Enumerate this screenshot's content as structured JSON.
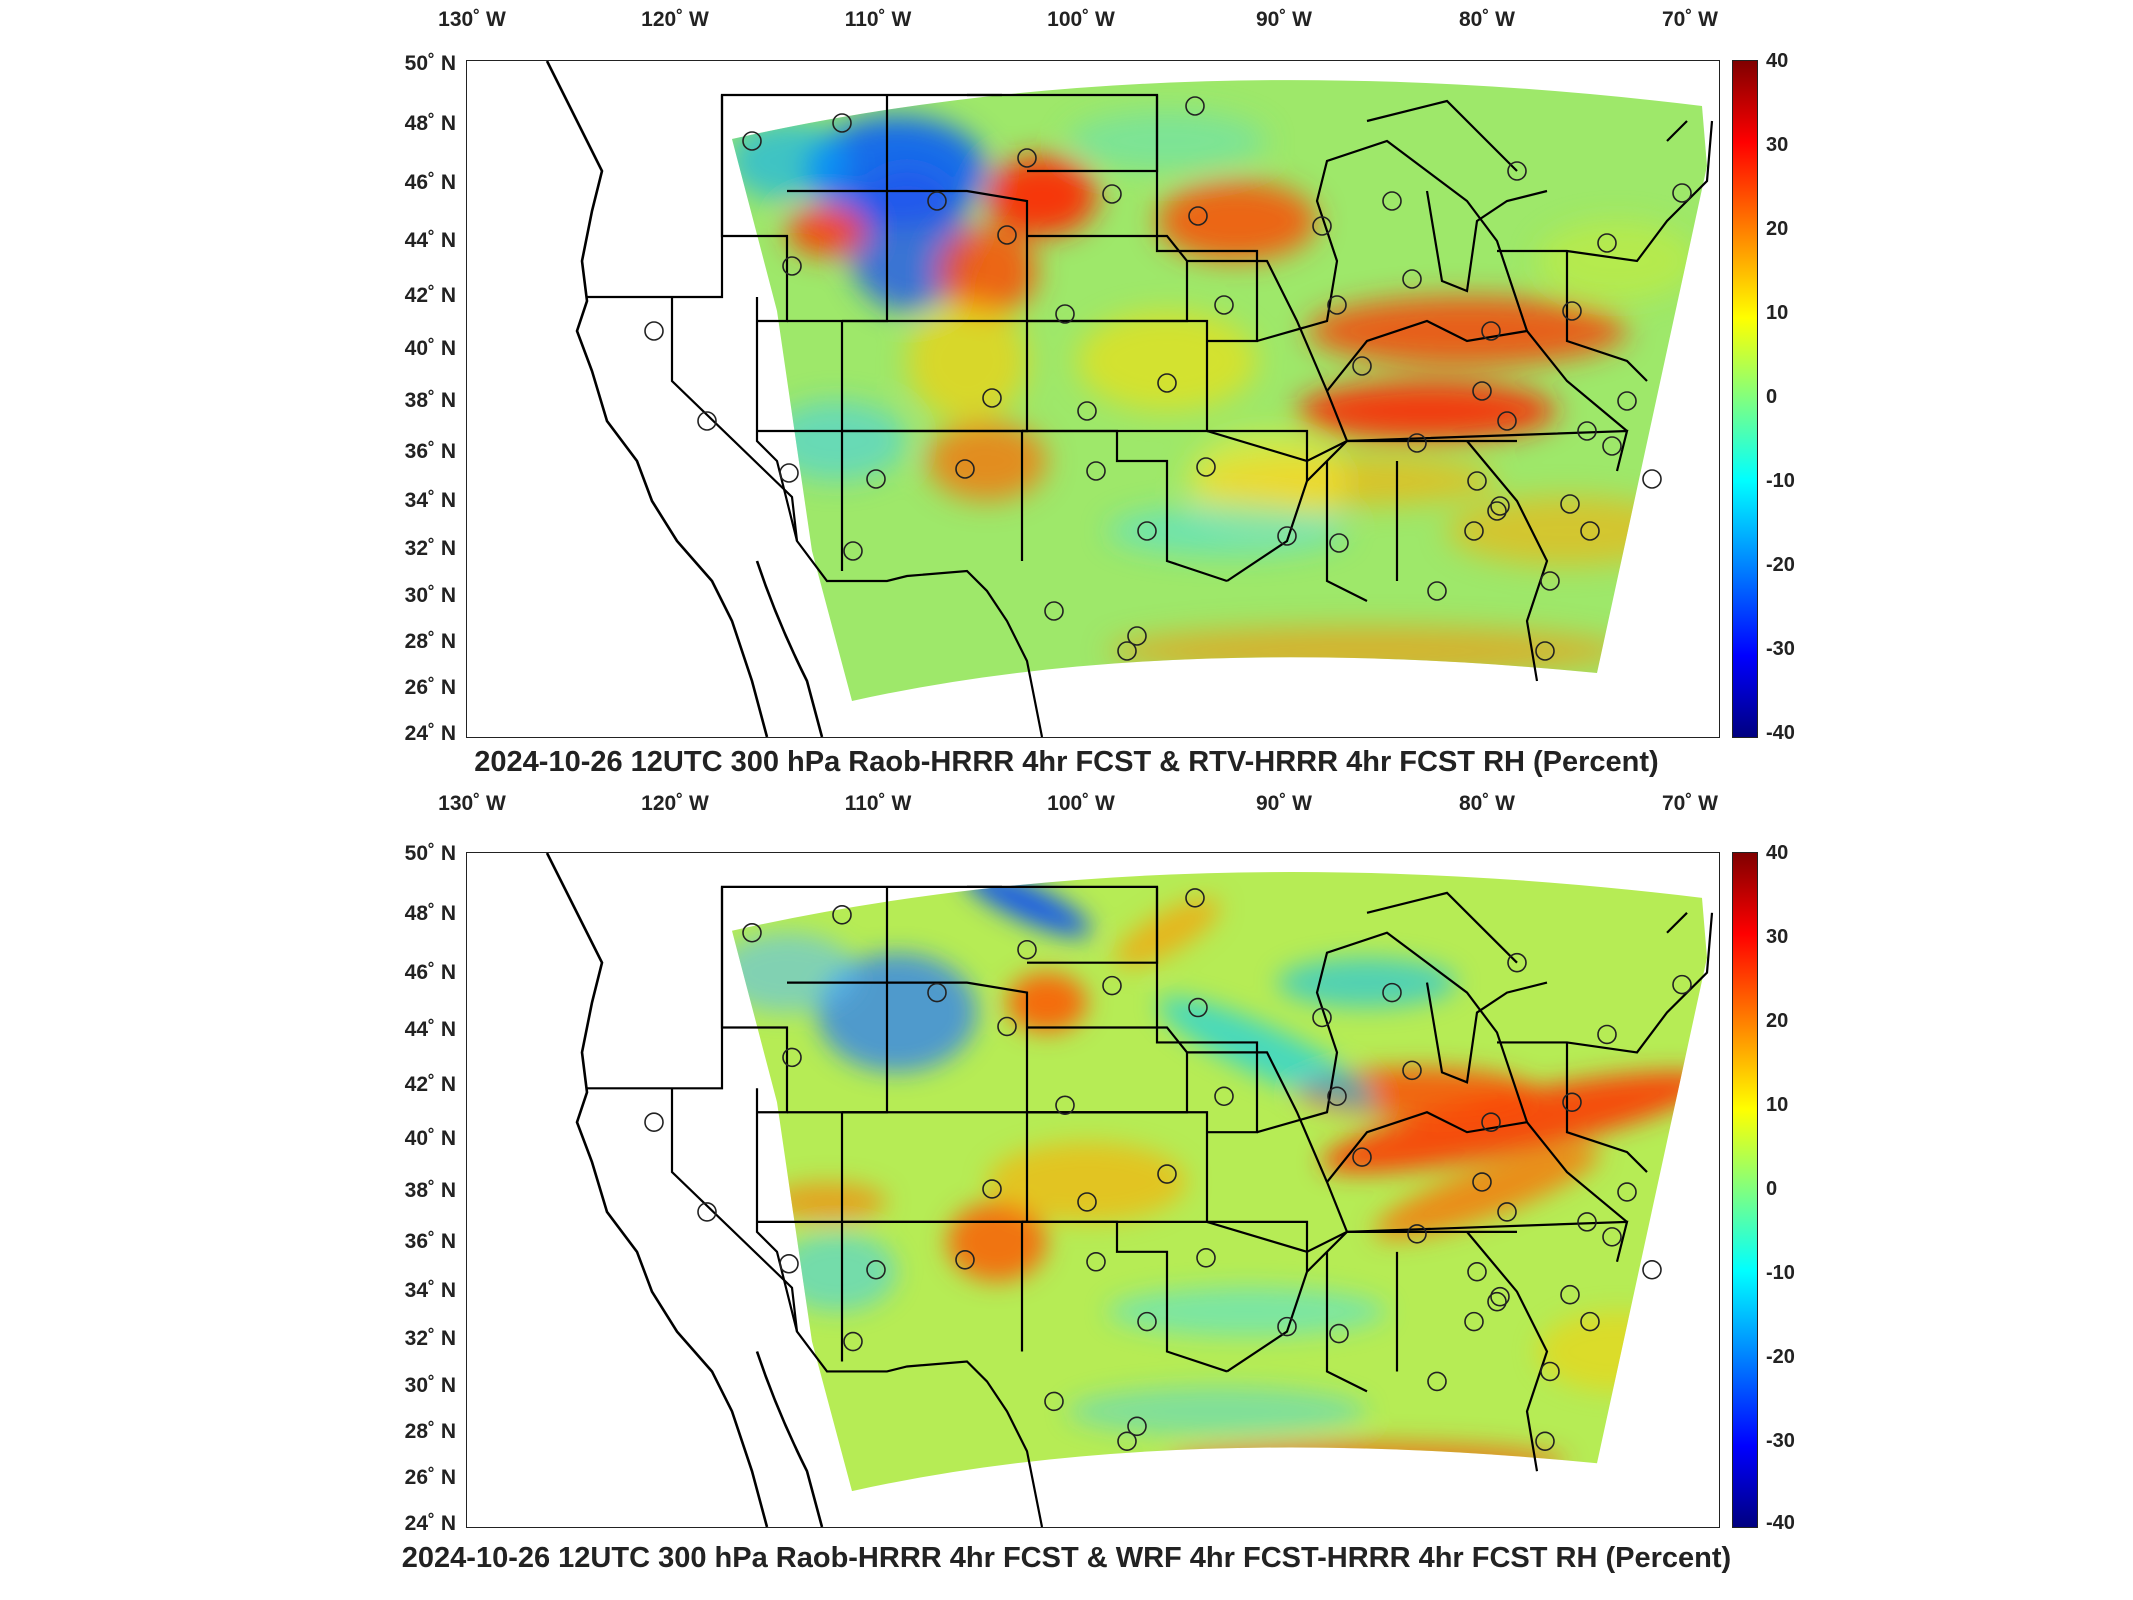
{
  "panels": [
    {
      "title": "2024-10-26 12UTC 300 hPa Raob-HRRR 4hr FCST & RTV-HRRR 4hr FCST RH (Percent)",
      "colorbar": {
        "ticks": [
          "40",
          "30",
          "20",
          "10",
          "0",
          "-10",
          "-20",
          "-30",
          "-40"
        ]
      },
      "lon_ticks": [
        "130˚ W",
        "120˚ W",
        "110˚ W",
        "100˚ W",
        "90˚ W",
        "80˚ W",
        "70˚ W"
      ],
      "lat_ticks": [
        "50˚ N",
        "48˚ N",
        "46˚ N",
        "44˚ N",
        "42˚ N",
        "40˚ N",
        "38˚ N",
        "36˚ N",
        "34˚ N",
        "32˚ N",
        "30˚ N",
        "28˚ N",
        "26˚ N",
        "24˚ N"
      ]
    },
    {
      "title": "2024-10-26 12UTC 300 hPa Raob-HRRR 4hr FCST & WRF 4hr FCST-HRRR 4hr FCST RH (Percent)",
      "colorbar": {
        "ticks": [
          "40",
          "30",
          "20",
          "10",
          "0",
          "-10",
          "-20",
          "-30",
          "-40"
        ]
      },
      "lon_ticks": [
        "130˚ W",
        "120˚ W",
        "110˚ W",
        "100˚ W",
        "90˚ W",
        "80˚ W",
        "70˚ W"
      ],
      "lat_ticks": [
        "50˚ N",
        "48˚ N",
        "46˚ N",
        "44˚ N",
        "42˚ N",
        "40˚ N",
        "38˚ N",
        "36˚ N",
        "34˚ N",
        "32˚ N",
        "30˚ N",
        "28˚ N",
        "26˚ N",
        "24˚ N"
      ]
    }
  ],
  "colors": {
    "colormap": [
      "#800000",
      "#ff0000",
      "#ff8000",
      "#ffff00",
      "#80ff80",
      "#00ffff",
      "#0080ff",
      "#0000ff",
      "#000080"
    ],
    "field_base": "#9ee86a"
  }
}
